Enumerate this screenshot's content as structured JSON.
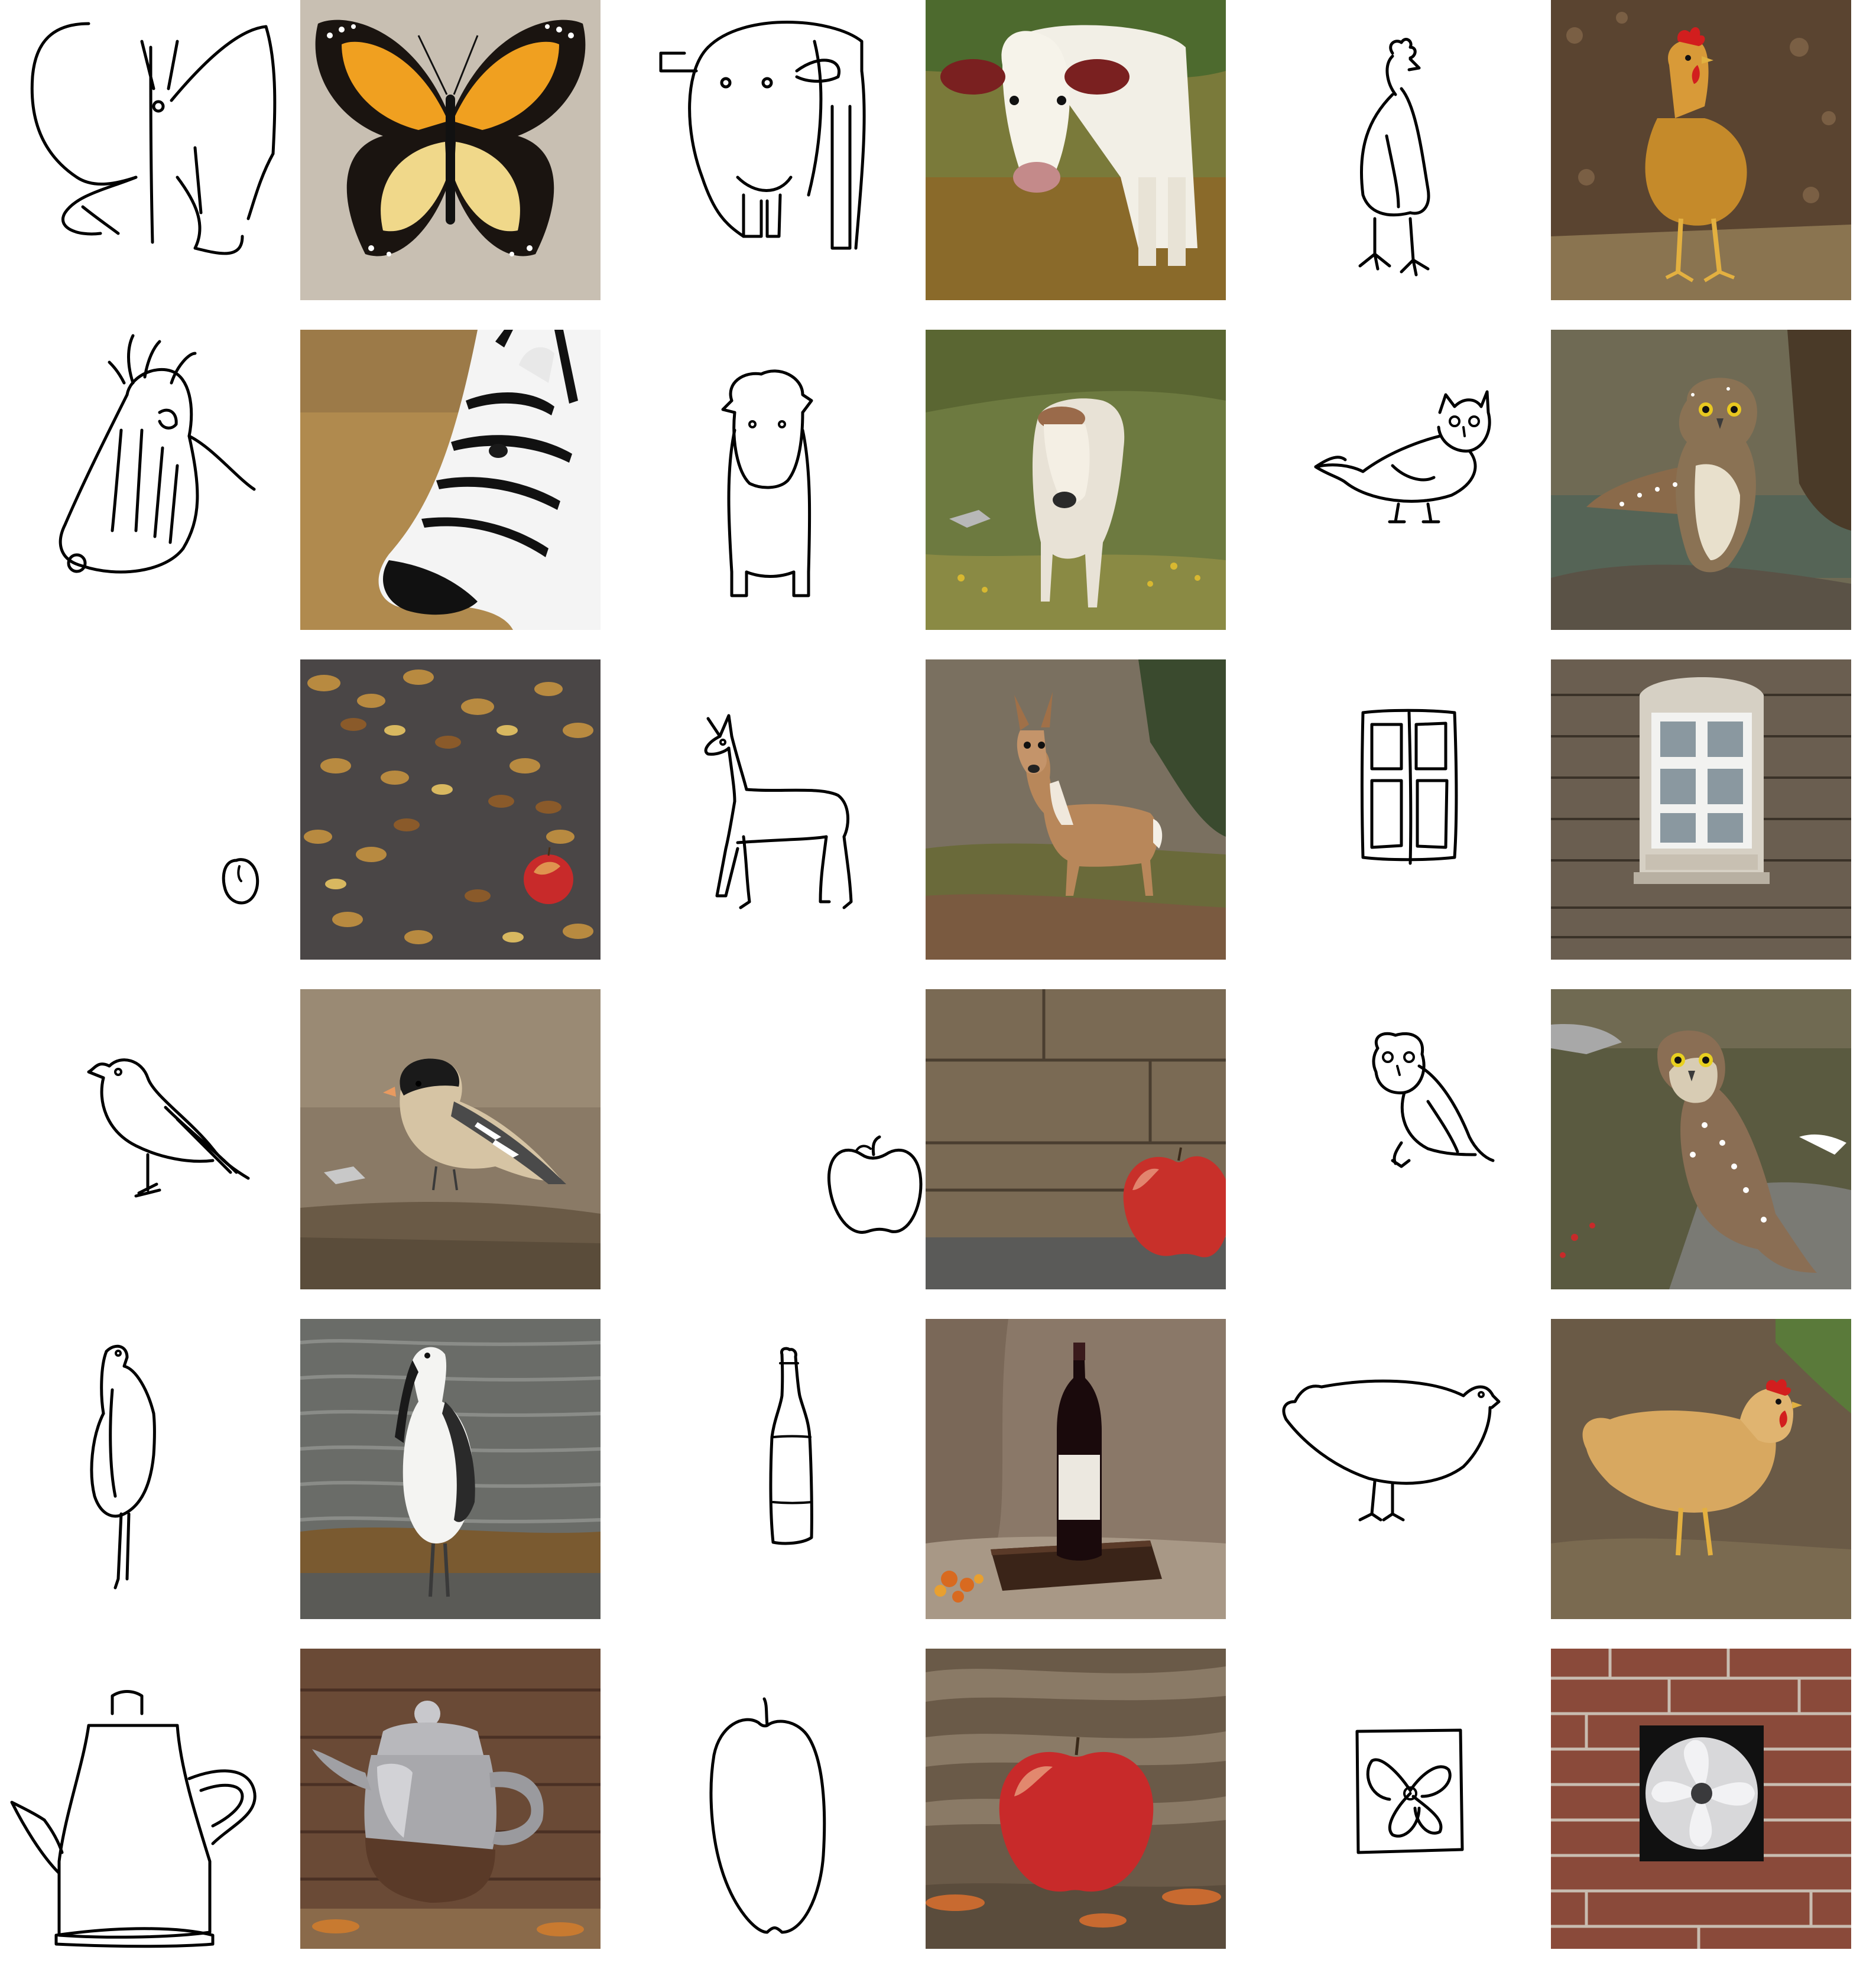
{
  "grid": {
    "rows": 6,
    "cols": 3,
    "pairs": [
      {
        "subject": "butterfly",
        "sketch": "butterfly-sketch",
        "photo": "monarch-butterfly-photo"
      },
      {
        "subject": "cow",
        "sketch": "cow-head-sketch",
        "photo": "cow-photo"
      },
      {
        "subject": "rooster",
        "sketch": "rooster-sketch",
        "photo": "rooster-photo"
      },
      {
        "subject": "zebra",
        "sketch": "zebra-head-sketch",
        "photo": "zebra-photo"
      },
      {
        "subject": "cow",
        "sketch": "cow-front-sketch",
        "photo": "cow-on-hill-photo"
      },
      {
        "subject": "owl",
        "sketch": "owl-sketch",
        "photo": "owl-on-rock-photo"
      },
      {
        "subject": "apple",
        "sketch": "small-apple-sketch",
        "photo": "apple-in-leaves-photo"
      },
      {
        "subject": "deer",
        "sketch": "deer-sketch",
        "photo": "deer-photo"
      },
      {
        "subject": "window",
        "sketch": "window-sketch",
        "photo": "stone-window-photo"
      },
      {
        "subject": "bird",
        "sketch": "bird-sketch",
        "photo": "finch-photo"
      },
      {
        "subject": "apple",
        "sketch": "apple-sketch",
        "photo": "apple-by-wall-photo"
      },
      {
        "subject": "owl",
        "sketch": "owl-perched-sketch",
        "photo": "owl-by-stream-photo"
      },
      {
        "subject": "heron",
        "sketch": "heron-sketch",
        "photo": "waterbird-photo"
      },
      {
        "subject": "bottle",
        "sketch": "bottle-sketch",
        "photo": "wine-bottle-photo"
      },
      {
        "subject": "chicken",
        "sketch": "chicken-sketch",
        "photo": "hen-photo"
      },
      {
        "subject": "teapot",
        "sketch": "teapot-sketch",
        "photo": "metal-teapot-photo"
      },
      {
        "subject": "apple",
        "sketch": "apple-large-sketch",
        "photo": "apple-on-leaves-photo"
      },
      {
        "subject": "fan",
        "sketch": "fan-sketch",
        "photo": "wall-fan-photo"
      }
    ]
  },
  "colors": {
    "background": "#ffffff",
    "stroke": "#000000"
  }
}
